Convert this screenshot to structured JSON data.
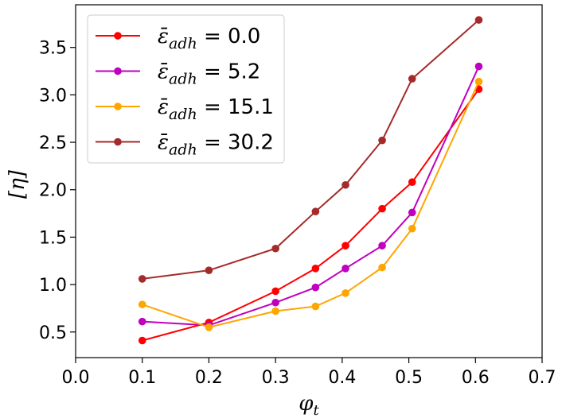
{
  "chart_data": {
    "type": "line",
    "title": "",
    "xlabel": "φ",
    "xlabel_sub": "t",
    "ylabel": "[η]",
    "xlim": [
      0.0,
      0.7
    ],
    "ylim": [
      0.23,
      3.95
    ],
    "xticks": [
      0.0,
      0.1,
      0.2,
      0.3,
      0.4,
      0.5,
      0.6,
      0.7
    ],
    "xtick_labels": [
      "0.0",
      "0.1",
      "0.2",
      "0.3",
      "0.4",
      "0.5",
      "0.6",
      "0.7"
    ],
    "yticks": [
      0.5,
      1.0,
      1.5,
      2.0,
      2.5,
      3.0,
      3.5
    ],
    "ytick_labels": [
      "0.5",
      "1.0",
      "1.5",
      "2.0",
      "2.5",
      "3.0",
      "3.5"
    ],
    "grid": false,
    "legend_position": "top-left",
    "series": [
      {
        "name": "ε̄adh = 0.0",
        "symbol": "ε̄",
        "subscript": "adh",
        "eq_value": " = 0.0",
        "color": "#ff0000",
        "x": [
          0.1,
          0.2,
          0.3,
          0.36,
          0.405,
          0.46,
          0.505,
          0.605
        ],
        "y": [
          0.41,
          0.6,
          0.93,
          1.17,
          1.41,
          1.8,
          2.08,
          3.06
        ]
      },
      {
        "name": "ε̄adh = 5.2",
        "symbol": "ε̄",
        "subscript": "adh",
        "eq_value": " = 5.2",
        "color": "#bf00bf",
        "x": [
          0.1,
          0.2,
          0.3,
          0.36,
          0.405,
          0.46,
          0.505,
          0.605
        ],
        "y": [
          0.61,
          0.57,
          0.81,
          0.97,
          1.17,
          1.41,
          1.76,
          3.3
        ]
      },
      {
        "name": "ε̄adh = 15.1",
        "symbol": "ε̄",
        "subscript": "adh",
        "eq_value": " = 15.1",
        "color": "#ffa500",
        "x": [
          0.1,
          0.2,
          0.3,
          0.36,
          0.405,
          0.46,
          0.505,
          0.605
        ],
        "y": [
          0.79,
          0.55,
          0.72,
          0.77,
          0.91,
          1.18,
          1.59,
          3.14
        ]
      },
      {
        "name": "ε̄adh = 30.2",
        "symbol": "ε̄",
        "subscript": "adh",
        "eq_value": " = 30.2",
        "color": "#a52a2a",
        "x": [
          0.1,
          0.2,
          0.3,
          0.36,
          0.405,
          0.46,
          0.505,
          0.605
        ],
        "y": [
          1.06,
          1.15,
          1.38,
          1.77,
          2.05,
          2.52,
          3.17,
          3.79
        ]
      }
    ]
  }
}
